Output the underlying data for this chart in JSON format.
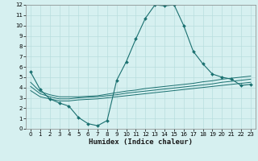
{
  "xlabel": "Humidex (Indice chaleur)",
  "bg_color": "#d6f0f0",
  "line_color": "#1a7070",
  "grid_color": "#b8dede",
  "xlim": [
    -0.5,
    23.5
  ],
  "ylim": [
    0,
    12
  ],
  "xticks": [
    0,
    1,
    2,
    3,
    4,
    5,
    6,
    7,
    8,
    9,
    10,
    11,
    12,
    13,
    14,
    15,
    16,
    17,
    18,
    19,
    20,
    21,
    22,
    23
  ],
  "yticks": [
    0,
    1,
    2,
    3,
    4,
    5,
    6,
    7,
    8,
    9,
    10,
    11,
    12
  ],
  "main_x": [
    0,
    1,
    2,
    3,
    4,
    5,
    6,
    7,
    8,
    9,
    10,
    11,
    12,
    13,
    14,
    15,
    16,
    17,
    18,
    19,
    20,
    21,
    22,
    23
  ],
  "main_y": [
    5.5,
    3.8,
    2.9,
    2.5,
    2.2,
    1.1,
    0.5,
    0.3,
    0.8,
    4.7,
    6.5,
    8.7,
    10.7,
    12.0,
    11.9,
    12.0,
    10.0,
    7.5,
    6.3,
    5.3,
    5.0,
    4.8,
    4.2,
    4.3
  ],
  "line2_x": [
    0,
    1,
    2,
    3,
    4,
    5,
    6,
    7,
    8,
    9,
    10,
    11,
    12,
    13,
    14,
    15,
    16,
    17,
    18,
    19,
    20,
    21,
    22,
    23
  ],
  "line2_y": [
    4.5,
    3.6,
    3.3,
    3.1,
    3.1,
    3.1,
    3.15,
    3.2,
    3.35,
    3.5,
    3.65,
    3.75,
    3.9,
    4.0,
    4.1,
    4.2,
    4.3,
    4.4,
    4.55,
    4.65,
    4.8,
    4.9,
    5.0,
    5.1
  ],
  "line3_x": [
    0,
    1,
    2,
    3,
    4,
    5,
    6,
    7,
    8,
    9,
    10,
    11,
    12,
    13,
    14,
    15,
    16,
    17,
    18,
    19,
    20,
    21,
    22,
    23
  ],
  "line3_y": [
    4.1,
    3.4,
    3.1,
    2.9,
    2.9,
    3.0,
    3.05,
    3.1,
    3.2,
    3.3,
    3.45,
    3.55,
    3.65,
    3.75,
    3.85,
    3.95,
    4.05,
    4.15,
    4.25,
    4.35,
    4.5,
    4.6,
    4.7,
    4.8
  ],
  "line4_x": [
    0,
    1,
    2,
    3,
    4,
    5,
    6,
    7,
    8,
    9,
    10,
    11,
    12,
    13,
    14,
    15,
    16,
    17,
    18,
    19,
    20,
    21,
    22,
    23
  ],
  "line4_y": [
    3.7,
    3.1,
    2.9,
    2.7,
    2.7,
    2.8,
    2.85,
    2.9,
    3.0,
    3.1,
    3.2,
    3.3,
    3.4,
    3.5,
    3.6,
    3.7,
    3.8,
    3.9,
    4.0,
    4.1,
    4.2,
    4.3,
    4.4,
    4.5
  ],
  "tick_fontsize": 5.0,
  "xlabel_fontsize": 6.5,
  "marker_size": 2.0
}
